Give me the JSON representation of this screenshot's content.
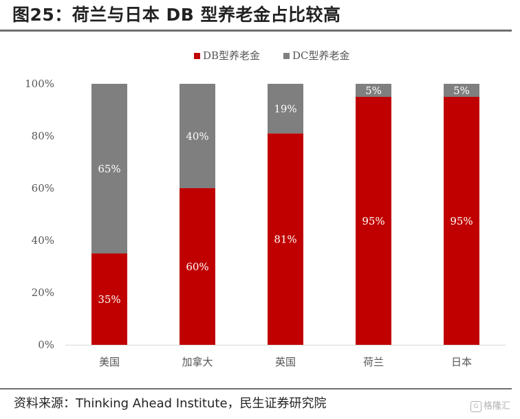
{
  "title": "图25：荷兰与日本 DB 型养老金占比较高",
  "source": "资料来源：Thinking Ahead Institute，民生证券研究院",
  "watermark": "格隆汇",
  "colors": {
    "db": "#c00000",
    "dc": "#7f7f7f",
    "axis": "#d9d9d9",
    "label_on_db": "#ffffff",
    "label_on_dc": "#ffffff"
  },
  "chart_data": {
    "type": "bar",
    "stacked": true,
    "categories": [
      "美国",
      "加拿大",
      "英国",
      "荷兰",
      "日本"
    ],
    "series": [
      {
        "name": "DB型养老金",
        "values": [
          35,
          60,
          81,
          95,
          95
        ],
        "labels": [
          "35%",
          "60%",
          "81%",
          "95%",
          "95%"
        ]
      },
      {
        "name": "DC型养老金",
        "values": [
          65,
          40,
          19,
          5,
          5
        ],
        "labels": [
          "65%",
          "40%",
          "19%",
          "5%",
          "5%"
        ]
      }
    ],
    "yticks": [
      "0%",
      "20%",
      "40%",
      "60%",
      "80%",
      "100%"
    ],
    "ylim": [
      0,
      100
    ],
    "legend": "top-center",
    "grid": false
  }
}
